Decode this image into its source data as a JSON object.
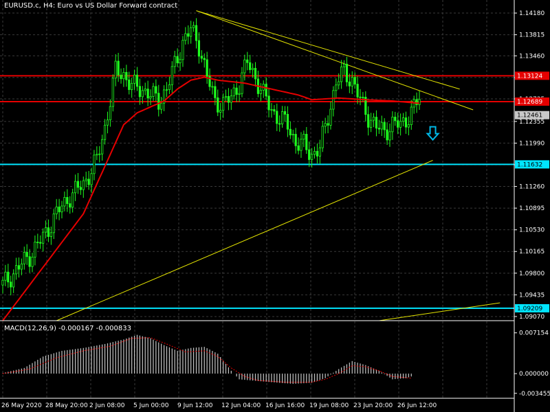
{
  "header": {
    "title": "EURUSD.c, H4:  Euro vs US Dollar Forward contract"
  },
  "subwindow": {
    "label": "MACD(12,26,9) -0.000167 -0.000833"
  },
  "colors": {
    "background": "#000000",
    "grid": "#3a3a3a",
    "candle": "#1eff1e",
    "ma": "#e60000",
    "red_line": "#e60000",
    "cyan_line": "#00e5ff",
    "trend": "#e6e600",
    "macd_hist": "#c8c8c8",
    "macd_signal": "#e60000",
    "arrow": "#00b8e6"
  },
  "chart_data": {
    "type": "candlestick",
    "symbol": "EURUSD.c",
    "timeframe": "H4",
    "price_axis": {
      "range": [
        1.09,
        1.144
      ],
      "ticks": [
        "1.14180",
        "1.13815",
        "1.13460",
        "1.13095",
        "1.12735",
        "1.12355",
        "1.11990",
        "1.11625",
        "1.11260",
        "1.10895",
        "1.10530",
        "1.10165",
        "1.09800",
        "1.09435",
        "1.09070"
      ]
    },
    "time_axis": {
      "labels": [
        "26 May 2020",
        "28 May 20:00",
        "2 Jun 08:00",
        "5 Jun 00:00",
        "9 Jun 12:00",
        "12 Jun 04:00",
        "16 Jun 16:00",
        "19 Jun 08:00",
        "23 Jun 20:00",
        "26 Jun 12:00"
      ]
    },
    "close_path": [
      [
        0,
        1.096
      ],
      [
        5,
        1.0985
      ],
      [
        10,
        1.101
      ],
      [
        15,
        1.104
      ],
      [
        20,
        1.108
      ],
      [
        25,
        1.111
      ],
      [
        30,
        1.113
      ],
      [
        35,
        1.117
      ],
      [
        38,
        1.1225
      ],
      [
        42,
        1.132
      ],
      [
        45,
        1.1315
      ],
      [
        48,
        1.1295
      ],
      [
        52,
        1.129
      ],
      [
        55,
        1.128
      ],
      [
        58,
        1.127
      ],
      [
        61,
        1.129
      ],
      [
        64,
        1.133
      ],
      [
        67,
        1.137
      ],
      [
        70,
        1.139
      ],
      [
        73,
        1.1365
      ],
      [
        76,
        1.131
      ],
      [
        79,
        1.127
      ],
      [
        82,
        1.1265
      ],
      [
        85,
        1.1275
      ],
      [
        88,
        1.13
      ],
      [
        91,
        1.1335
      ],
      [
        94,
        1.131
      ],
      [
        97,
        1.128
      ],
      [
        100,
        1.1255
      ],
      [
        103,
        1.124
      ],
      [
        106,
        1.123
      ],
      [
        109,
        1.12
      ],
      [
        112,
        1.1195
      ],
      [
        115,
        1.118
      ],
      [
        118,
        1.119
      ],
      [
        121,
        1.1245
      ],
      [
        124,
        1.13
      ],
      [
        127,
        1.132
      ],
      [
        130,
        1.1305
      ],
      [
        133,
        1.127
      ],
      [
        136,
        1.1245
      ],
      [
        139,
        1.1225
      ],
      [
        142,
        1.122
      ],
      [
        145,
        1.123
      ],
      [
        148,
        1.123
      ],
      [
        152,
        1.125
      ],
      [
        155,
        1.1275
      ]
    ],
    "moving_average": [
      [
        0,
        1.09
      ],
      [
        10,
        1.096
      ],
      [
        20,
        1.102
      ],
      [
        30,
        1.108
      ],
      [
        35,
        1.113
      ],
      [
        40,
        1.118
      ],
      [
        45,
        1.123
      ],
      [
        50,
        1.125
      ],
      [
        55,
        1.126
      ],
      [
        60,
        1.127
      ],
      [
        65,
        1.129
      ],
      [
        70,
        1.1305
      ],
      [
        75,
        1.131
      ],
      [
        80,
        1.1305
      ],
      [
        90,
        1.13
      ],
      [
        100,
        1.129
      ],
      [
        110,
        1.128
      ],
      [
        115,
        1.1272
      ],
      [
        125,
        1.1275
      ],
      [
        135,
        1.1272
      ],
      [
        145,
        1.127
      ],
      [
        155,
        1.1266
      ]
    ],
    "horizontal_lines": [
      {
        "price": 1.13124,
        "label": "1.13124",
        "kind": "red"
      },
      {
        "price": 1.12689,
        "label": "1.12689",
        "kind": "red"
      },
      {
        "price": 1.11632,
        "label": "1.11632",
        "kind": "cyan"
      },
      {
        "price": 1.09209,
        "label": "1.09209",
        "kind": "cyan"
      }
    ],
    "current_price": {
      "price": 1.12461,
      "label": "1.12461"
    },
    "trend_lines": [
      {
        "from": [
          72,
          1.1422
        ],
        "to": [
          170,
          1.129
        ]
      },
      {
        "from": [
          72,
          1.1422
        ],
        "to": [
          175,
          1.1255
        ]
      },
      {
        "from": [
          20,
          1.09
        ],
        "to": [
          160,
          1.117
        ]
      },
      {
        "from": [
          140,
          1.09
        ],
        "to": [
          185,
          1.093
        ]
      }
    ],
    "arrow": {
      "at": [
        160,
        1.1215
      ],
      "direction": "down"
    },
    "macd": {
      "label": "MACD(12,26,9) -0.000167 -0.000833",
      "range": [
        -0.0036,
        0.0076
      ],
      "ticks": [
        "0.007154",
        "0.000000",
        "-0.003455"
      ],
      "hist_path": [
        [
          0,
          0.0001
        ],
        [
          8,
          0.001
        ],
        [
          15,
          0.003
        ],
        [
          22,
          0.004
        ],
        [
          30,
          0.0045
        ],
        [
          38,
          0.0052
        ],
        [
          45,
          0.006
        ],
        [
          50,
          0.0068
        ],
        [
          55,
          0.0062
        ],
        [
          60,
          0.005
        ],
        [
          65,
          0.004
        ],
        [
          70,
          0.0045
        ],
        [
          75,
          0.0047
        ],
        [
          80,
          0.0035
        ],
        [
          85,
          0.0005
        ],
        [
          88,
          -0.001
        ],
        [
          95,
          -0.0013
        ],
        [
          100,
          -0.0015
        ],
        [
          108,
          -0.0018
        ],
        [
          115,
          -0.0016
        ],
        [
          120,
          -0.0008
        ],
        [
          125,
          0.0008
        ],
        [
          130,
          0.0022
        ],
        [
          135,
          0.0015
        ],
        [
          140,
          0.0005
        ],
        [
          145,
          -0.001
        ],
        [
          150,
          -0.0008
        ],
        [
          152,
          -0.0005
        ]
      ],
      "signal_path": [
        [
          0,
          0.0
        ],
        [
          10,
          0.0008
        ],
        [
          20,
          0.0028
        ],
        [
          30,
          0.004
        ],
        [
          40,
          0.0048
        ],
        [
          48,
          0.0062
        ],
        [
          55,
          0.0063
        ],
        [
          62,
          0.005
        ],
        [
          68,
          0.0038
        ],
        [
          75,
          0.004
        ],
        [
          80,
          0.003
        ],
        [
          85,
          0.001
        ],
        [
          90,
          -0.0005
        ],
        [
          95,
          -0.0012
        ],
        [
          105,
          -0.0015
        ],
        [
          115,
          -0.0015
        ],
        [
          120,
          -0.001
        ],
        [
          125,
          0.0
        ],
        [
          130,
          0.0014
        ],
        [
          135,
          0.0012
        ],
        [
          140,
          0.0005
        ],
        [
          145,
          -0.0005
        ],
        [
          152,
          -0.0008
        ]
      ]
    }
  }
}
